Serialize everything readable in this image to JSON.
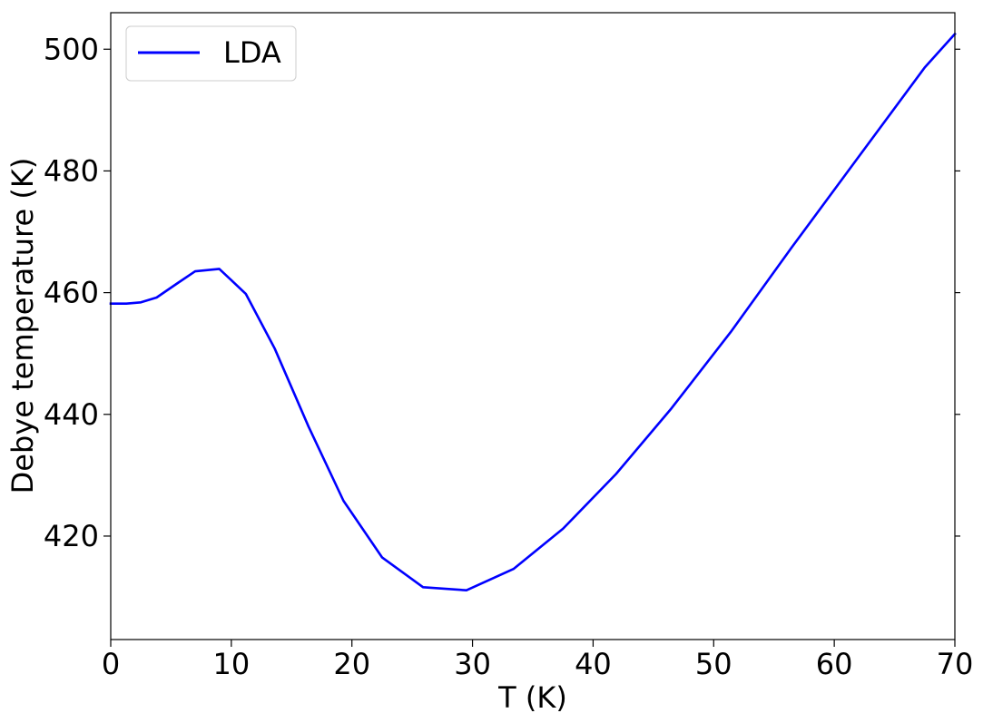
{
  "chart_data": {
    "type": "line",
    "title": "",
    "xlabel": "T (K)",
    "ylabel": "Debye temperature (K)",
    "xlim": [
      0,
      70
    ],
    "ylim": [
      403,
      506
    ],
    "x_ticks": [
      0,
      10,
      20,
      30,
      40,
      50,
      60,
      70
    ],
    "y_ticks": [
      420,
      440,
      460,
      480,
      500
    ],
    "grid": false,
    "legend_position": "top-left",
    "series": [
      {
        "name": "LDA",
        "color": "#0000ff",
        "x": [
          0,
          1.3,
          2.5,
          3.8,
          5.5,
          7.0,
          9.0,
          11.2,
          13.6,
          16.4,
          19.3,
          22.5,
          25.9,
          29.5,
          33.4,
          37.5,
          41.9,
          46.5,
          51.4,
          56.5,
          61.9,
          67.5,
          70
        ],
        "y": [
          458.2,
          458.2,
          458.4,
          459.2,
          461.5,
          463.5,
          463.9,
          459.8,
          450.8,
          438.0,
          425.8,
          416.5,
          411.6,
          411.1,
          414.6,
          421.2,
          430.2,
          441.0,
          453.5,
          467.5,
          482.0,
          497.0,
          502.5
        ]
      }
    ]
  }
}
